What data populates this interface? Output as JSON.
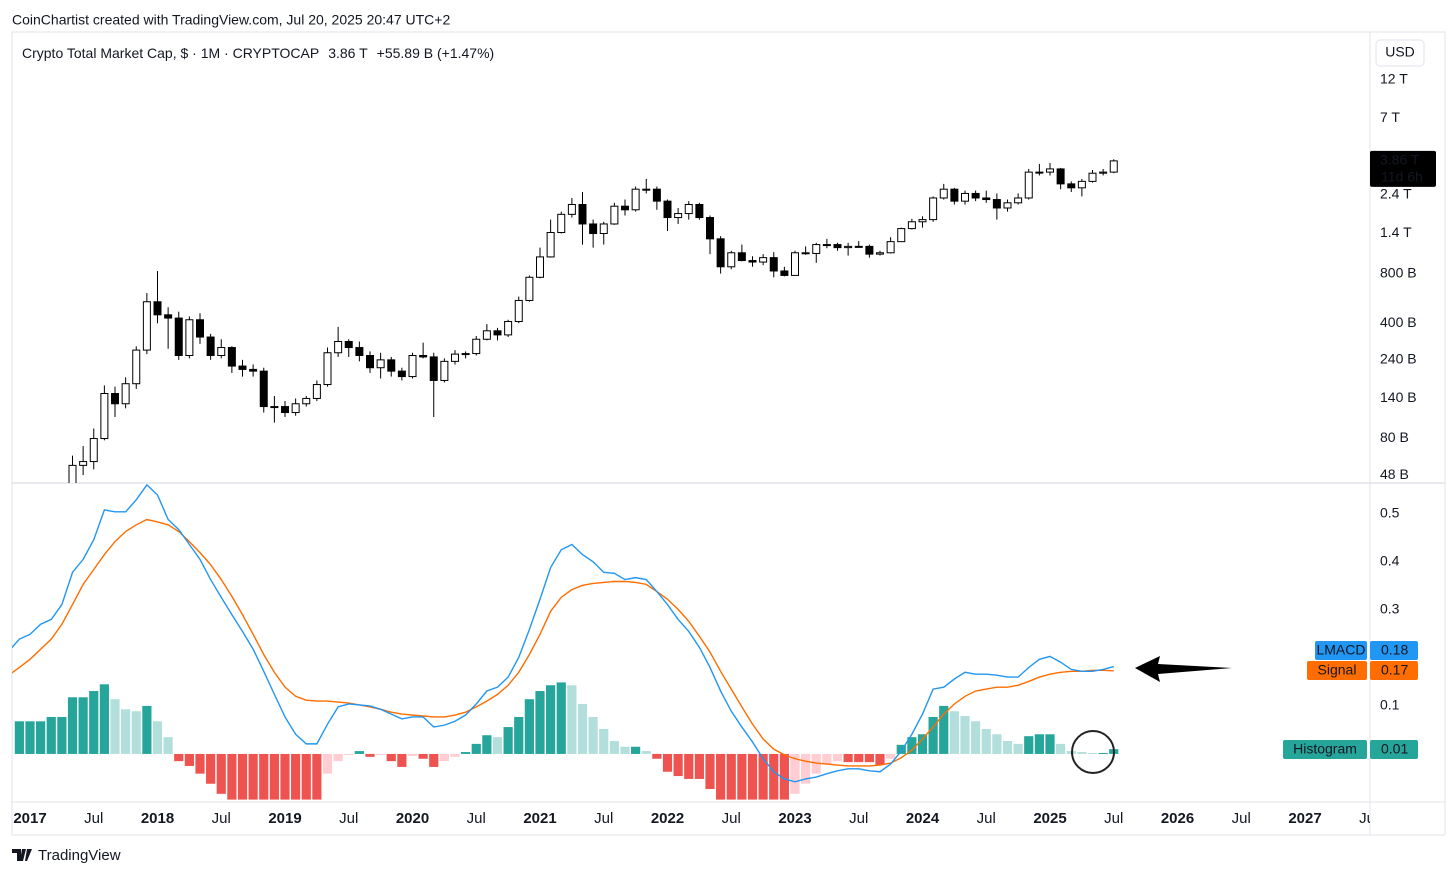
{
  "chart_data": {
    "type": "candlestick",
    "watermark": "CoinChartist created with TradingView.com, Jul 20, 2025 20:47 UTC+2",
    "title": "Crypto Total Market Cap, $ · 1M · CRYPTOCAP",
    "price_text": "3.86 T",
    "change_text": "+55.89 B (+1.47%)",
    "currency": "USD",
    "logo": "TradingView",
    "last_price": {
      "value": 3860,
      "label": "3.86 T"
    },
    "countdown": "11d 6h",
    "log_scale": true,
    "grid": false,
    "up_color": "#ffffff",
    "down_color": "#000000",
    "categories": [
      null,
      null,
      "2017",
      null,
      null,
      null,
      null,
      null,
      "Jul",
      null,
      null,
      null,
      null,
      null,
      "2018",
      null,
      null,
      null,
      null,
      null,
      "Jul",
      null,
      null,
      null,
      null,
      null,
      "2019",
      null,
      null,
      null,
      null,
      null,
      "Jul",
      null,
      null,
      null,
      null,
      null,
      "2020",
      null,
      null,
      null,
      null,
      null,
      "Jul",
      null,
      null,
      null,
      null,
      null,
      "2021",
      null,
      null,
      null,
      null,
      null,
      "Jul",
      null,
      null,
      null,
      null,
      null,
      "2022",
      null,
      null,
      null,
      null,
      null,
      "Jul",
      null,
      null,
      null,
      null,
      null,
      "2023",
      null,
      null,
      null,
      null,
      null,
      "Jul",
      null,
      null,
      null,
      null,
      null,
      "2024",
      null,
      null,
      null,
      null,
      null,
      "Jul",
      null,
      null,
      null,
      null,
      null,
      "2025",
      null,
      null,
      null,
      null,
      null,
      "Jul",
      null,
      null,
      null,
      null,
      null,
      "2026",
      null,
      null,
      null,
      null,
      null,
      "Jul",
      null,
      null,
      null,
      null,
      null,
      "2027",
      null,
      null,
      null,
      null,
      null,
      "Jul"
    ],
    "open": [
      null,
      null,
      null,
      null,
      null,
      null,
      40,
      55,
      58,
      80,
      150,
      130,
      172,
      275,
      540,
      450,
      430,
      255,
      420,
      330,
      255,
      285,
      220,
      210,
      205,
      125,
      125,
      115,
      130,
      140,
      170,
      265,
      310,
      285,
      255,
      215,
      240,
      205,
      190,
      255,
      250,
      180,
      235,
      260,
      262,
      320,
      360,
      340,
      410,
      550,
      760,
      1010,
      1420,
      1830,
      2100,
      1600,
      1400,
      1600,
      2050,
      1950,
      2600,
      2600,
      2200,
      1750,
      1850,
      2100,
      1750,
      1300,
      880,
      1070,
      960,
      940,
      1000,
      830,
      780,
      1070,
      1060,
      1200,
      1200,
      1150,
      1170,
      1170,
      1050,
      1070,
      1250,
      1500,
      1650,
      1700,
      2300,
      2600,
      2200,
      2450,
      2300,
      2250,
      2000,
      2150,
      2300,
      3300,
      3300,
      3450,
      2800,
      2650,
      2900,
      3250,
      3300,
      null,
      null,
      null,
      null,
      null,
      null,
      null,
      null,
      null,
      null,
      null,
      null,
      null,
      null,
      null,
      null,
      null,
      null,
      null,
      null,
      null,
      null,
      null,
      null
    ],
    "high": [
      null,
      null,
      null,
      null,
      null,
      null,
      63,
      72,
      92,
      168,
      165,
      188,
      290,
      610,
      830,
      500,
      470,
      440,
      460,
      345,
      320,
      290,
      240,
      225,
      215,
      145,
      135,
      140,
      145,
      180,
      285,
      380,
      320,
      310,
      270,
      265,
      250,
      215,
      265,
      305,
      265,
      245,
      275,
      270,
      335,
      395,
      375,
      420,
      580,
      780,
      1150,
      1700,
      1900,
      2300,
      2500,
      1700,
      1650,
      2150,
      2250,
      2700,
      3000,
      2700,
      2250,
      2000,
      2200,
      2150,
      1800,
      1350,
      1100,
      1200,
      1020,
      1050,
      1080,
      880,
      1100,
      1170,
      1230,
      1300,
      1230,
      1230,
      1260,
      1200,
      1100,
      1330,
      1520,
      1720,
      1780,
      2350,
      2800,
      2650,
      2550,
      2550,
      2550,
      2450,
      2250,
      2450,
      3450,
      3700,
      3750,
      3500,
      2900,
      3000,
      3400,
      3450,
      3950,
      null,
      null,
      null,
      null,
      null,
      null,
      null,
      null,
      null,
      null,
      null,
      null,
      null,
      null,
      null,
      null,
      null,
      null,
      null,
      null,
      null,
      null,
      null,
      null
    ],
    "low": [
      null,
      null,
      null,
      null,
      null,
      null,
      38,
      48,
      52,
      78,
      108,
      122,
      160,
      260,
      400,
      280,
      240,
      245,
      300,
      240,
      245,
      200,
      190,
      190,
      115,
      100,
      108,
      110,
      125,
      135,
      165,
      250,
      250,
      235,
      200,
      185,
      190,
      180,
      185,
      245,
      108,
      175,
      225,
      245,
      255,
      315,
      315,
      330,
      400,
      540,
      750,
      1000,
      1400,
      1750,
      1200,
      1150,
      1200,
      1580,
      1800,
      1900,
      2450,
      1950,
      1450,
      1600,
      1700,
      1700,
      1050,
      800,
      850,
      950,
      880,
      900,
      760,
      770,
      780,
      1040,
      930,
      1140,
      1100,
      1030,
      1150,
      1000,
      1030,
      1060,
      1250,
      1480,
      1520,
      1650,
      2250,
      2100,
      2100,
      2200,
      2150,
      1700,
      1900,
      2100,
      2250,
      3150,
      3150,
      2600,
      2500,
      2350,
      2850,
      3150,
      3250,
      null,
      null,
      null,
      null,
      null,
      null,
      null,
      null,
      null,
      null,
      null,
      null,
      null,
      null,
      null,
      null,
      null,
      null,
      null,
      null,
      null,
      null,
      null,
      null
    ],
    "close": [
      null,
      null,
      null,
      null,
      null,
      null,
      55,
      58,
      80,
      150,
      130,
      172,
      275,
      540,
      450,
      430,
      255,
      420,
      330,
      255,
      285,
      220,
      210,
      205,
      125,
      125,
      115,
      130,
      140,
      170,
      265,
      310,
      285,
      255,
      215,
      240,
      205,
      190,
      255,
      250,
      180,
      235,
      260,
      262,
      320,
      360,
      340,
      410,
      550,
      760,
      1010,
      1420,
      1830,
      2100,
      1600,
      1400,
      1600,
      2050,
      1950,
      2600,
      2600,
      2200,
      1750,
      1850,
      2100,
      1750,
      1300,
      880,
      1070,
      960,
      940,
      1000,
      830,
      780,
      1070,
      1060,
      1200,
      1200,
      1150,
      1170,
      1170,
      1050,
      1070,
      1250,
      1500,
      1650,
      1700,
      2300,
      2600,
      2200,
      2450,
      2300,
      2250,
      2000,
      2150,
      2300,
      3300,
      3300,
      3450,
      2800,
      2650,
      2900,
      3250,
      3300,
      3860,
      null,
      null,
      null,
      null,
      null,
      null,
      null,
      null,
      null,
      null,
      null,
      null,
      null,
      null,
      null,
      null,
      null,
      null,
      null,
      null,
      null,
      null,
      null,
      null
    ],
    "ylim": [
      43,
      24000
    ],
    "yticks": [
      {
        "value": 12000,
        "label": "12 T"
      },
      {
        "value": 7000,
        "label": "7 T"
      },
      {
        "value": 2400,
        "label": "2.4 T"
      },
      {
        "value": 1400,
        "label": "1.4 T"
      },
      {
        "value": 800,
        "label": "800 B"
      },
      {
        "value": 400,
        "label": "400 B"
      },
      {
        "value": 240,
        "label": "240 B"
      },
      {
        "value": 140,
        "label": "140 B"
      },
      {
        "value": 80,
        "label": "80 B"
      },
      {
        "value": 48,
        "label": "48 B"
      }
    ],
    "y2lim": [
      -0.1,
      0.564
    ],
    "y2ticks": [
      0.5,
      0.4,
      0.3,
      0.1
    ],
    "lmacd": {
      "name": "LMACD",
      "color": "#2196f3",
      "axis": "y2",
      "last": 0.18,
      "values": [
        0.214,
        0.239,
        0.249,
        0.27,
        0.28,
        0.311,
        0.378,
        0.405,
        0.446,
        0.508,
        0.504,
        0.504,
        0.529,
        0.56,
        0.539,
        0.488,
        0.467,
        0.436,
        0.405,
        0.363,
        0.326,
        0.29,
        0.255,
        0.218,
        0.172,
        0.124,
        0.077,
        0.041,
        0.021,
        0.021,
        0.062,
        0.098,
        0.104,
        0.102,
        0.1,
        0.093,
        0.083,
        0.073,
        0.077,
        0.077,
        0.056,
        0.06,
        0.068,
        0.081,
        0.104,
        0.131,
        0.139,
        0.16,
        0.201,
        0.259,
        0.322,
        0.388,
        0.425,
        0.436,
        0.415,
        0.4,
        0.378,
        0.376,
        0.363,
        0.367,
        0.363,
        0.338,
        0.311,
        0.28,
        0.255,
        0.222,
        0.18,
        0.131,
        0.089,
        0.056,
        0.025,
        -0.01,
        -0.037,
        -0.052,
        -0.058,
        -0.052,
        -0.048,
        -0.041,
        -0.035,
        -0.031,
        -0.031,
        -0.035,
        -0.037,
        -0.021,
        0.006,
        0.041,
        0.083,
        0.135,
        0.139,
        0.156,
        0.17,
        0.166,
        0.166,
        0.164,
        0.16,
        0.16,
        0.18,
        0.197,
        0.203,
        0.191,
        0.176,
        0.172,
        0.172,
        0.176,
        0.182,
        null,
        null,
        null,
        null,
        null,
        null,
        null,
        null,
        null,
        null,
        null,
        null,
        null,
        null,
        null,
        null,
        null,
        null,
        null,
        null,
        null,
        null,
        null,
        null
      ]
    },
    "signal": {
      "name": "Signal",
      "color": "#ff6d00",
      "axis": "y2",
      "last": 0.17,
      "values": [
        0.164,
        0.18,
        0.197,
        0.218,
        0.239,
        0.27,
        0.311,
        0.353,
        0.384,
        0.415,
        0.442,
        0.463,
        0.477,
        0.488,
        0.483,
        0.477,
        0.463,
        0.442,
        0.419,
        0.394,
        0.363,
        0.328,
        0.29,
        0.249,
        0.207,
        0.17,
        0.139,
        0.12,
        0.112,
        0.11,
        0.11,
        0.108,
        0.106,
        0.102,
        0.098,
        0.093,
        0.087,
        0.083,
        0.081,
        0.079,
        0.077,
        0.077,
        0.081,
        0.087,
        0.098,
        0.11,
        0.124,
        0.143,
        0.17,
        0.207,
        0.249,
        0.297,
        0.326,
        0.342,
        0.351,
        0.355,
        0.357,
        0.359,
        0.359,
        0.357,
        0.353,
        0.338,
        0.322,
        0.301,
        0.276,
        0.245,
        0.212,
        0.172,
        0.135,
        0.098,
        0.062,
        0.031,
        0.01,
        -0.002,
        -0.01,
        -0.015,
        -0.019,
        -0.021,
        -0.023,
        -0.025,
        -0.025,
        -0.025,
        -0.023,
        -0.019,
        -0.008,
        0.008,
        0.031,
        0.056,
        0.083,
        0.104,
        0.12,
        0.131,
        0.135,
        0.139,
        0.139,
        0.143,
        0.151,
        0.16,
        0.166,
        0.17,
        0.172,
        0.172,
        0.174,
        0.174,
        0.173,
        null,
        null,
        null,
        null,
        null,
        null,
        null,
        null,
        null,
        null,
        null,
        null,
        null,
        null,
        null,
        null,
        null,
        null,
        null,
        null,
        null,
        null,
        null,
        null
      ]
    },
    "histogram": {
      "name": "Histogram",
      "color": "#26a69a",
      "axis": "y2",
      "last": 0.01,
      "colors": [
        "#26a69a",
        "#b2dfdb",
        "#ef5350",
        "#ffcdd2"
      ],
      "values": [
        null,
        0.068,
        0.068,
        0.068,
        0.077,
        0.077,
        0.118,
        0.118,
        0.131,
        0.145,
        0.114,
        0.093,
        0.089,
        0.1,
        0.068,
        0.035,
        -0.015,
        -0.025,
        -0.041,
        -0.062,
        -0.083,
        -0.095,
        -0.095,
        -0.095,
        -0.095,
        -0.095,
        -0.095,
        -0.095,
        -0.095,
        -0.095,
        -0.041,
        -0.015,
        -0.002,
        0.006,
        -0.006,
        -0.002,
        -0.015,
        -0.027,
        -0.004,
        -0.01,
        -0.027,
        -0.015,
        -0.006,
        0.004,
        0.021,
        0.039,
        0.035,
        0.056,
        0.077,
        0.114,
        0.131,
        0.143,
        0.149,
        0.143,
        0.104,
        0.077,
        0.052,
        0.027,
        0.015,
        0.015,
        0.006,
        -0.01,
        -0.037,
        -0.046,
        -0.052,
        -0.052,
        -0.073,
        -0.095,
        -0.095,
        -0.095,
        -0.095,
        -0.095,
        -0.095,
        -0.095,
        -0.083,
        -0.062,
        -0.041,
        -0.021,
        -0.015,
        -0.017,
        -0.017,
        -0.017,
        -0.023,
        -0.01,
        0.019,
        0.035,
        0.041,
        0.077,
        0.1,
        0.089,
        0.079,
        0.068,
        0.052,
        0.041,
        0.027,
        0.021,
        0.037,
        0.041,
        0.041,
        0.021,
        0.006,
        0.004,
        0.002,
        0.002,
        0.01,
        null,
        null,
        null,
        null,
        null,
        null,
        null,
        null,
        null,
        null,
        null,
        null,
        null,
        null,
        null,
        null,
        null,
        null,
        null,
        null,
        null,
        null,
        null,
        null
      ]
    }
  }
}
